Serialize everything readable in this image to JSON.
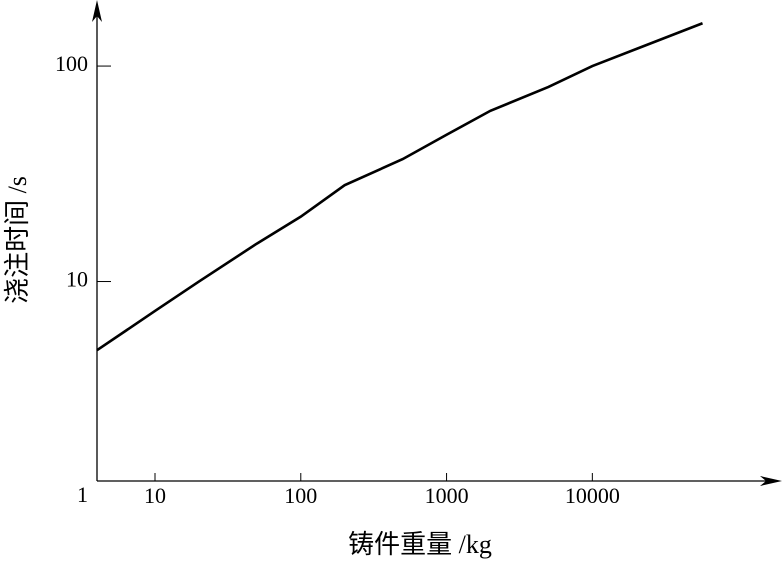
{
  "chart_data": {
    "type": "line",
    "xlabel": "铸件重量 /kg",
    "ylabel": "浇注时间 /s",
    "xscale": "log",
    "yscale": "log",
    "xlim": [
      4,
      200000
    ],
    "ylim": [
      1,
      190
    ],
    "xticks": [
      10,
      100,
      1000,
      10000
    ],
    "yticks": [
      1,
      10,
      100
    ],
    "series": [
      {
        "color": "#000000",
        "x": [
          4,
          10,
          20,
          50,
          100,
          200,
          500,
          1000,
          2000,
          5000,
          10000,
          20000,
          57000
        ],
        "values": [
          4.8,
          7.3,
          10,
          15,
          20,
          28,
          37,
          48,
          62,
          80,
          100,
          120,
          158
        ]
      }
    ]
  }
}
